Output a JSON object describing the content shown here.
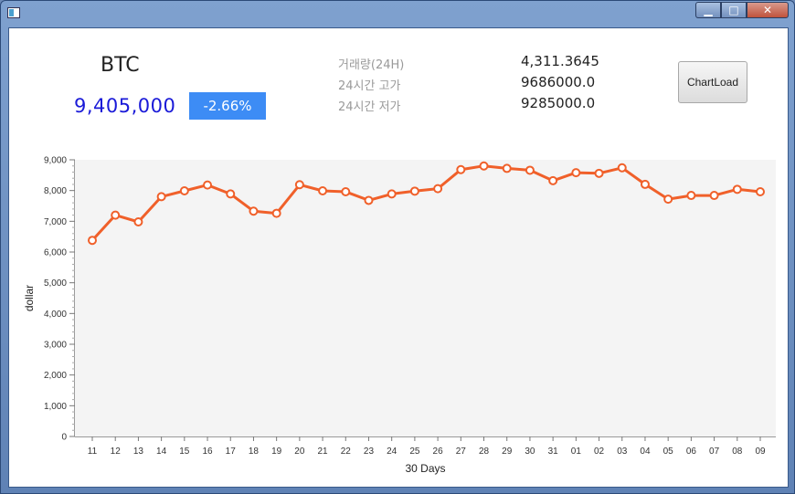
{
  "window": {
    "minimize": "▁",
    "maximize": "□",
    "close": "✕"
  },
  "ticker": {
    "coin": "BTC",
    "price": "9,405,000",
    "change": "-2.66%",
    "stats": [
      {
        "label": "거래량(24H)",
        "value": "4,311.3645"
      },
      {
        "label": "24시간 고가",
        "value": "9686000.0"
      },
      {
        "label": "24시간 저가",
        "value": "9285000.0"
      }
    ]
  },
  "toolbar": {
    "chart_load_label": "ChartLoad"
  },
  "colors": {
    "line": "#f0602a",
    "plot_bg": "#f4f4f4",
    "price": "#1a1ad8",
    "change_bg": "#3d8cf5"
  },
  "chart_data": {
    "type": "line",
    "xlabel": "30 Days",
    "ylabel": "dollar",
    "ylim": [
      0,
      9000
    ],
    "yticks": [
      0,
      1000,
      2000,
      3000,
      4000,
      5000,
      6000,
      7000,
      8000,
      9000
    ],
    "ytick_labels": [
      "0",
      "1,000",
      "2,000",
      "3,000",
      "4,000",
      "5,000",
      "6,000",
      "7,000",
      "8,000",
      "9,000"
    ],
    "categories": [
      "11",
      "12",
      "13",
      "14",
      "15",
      "16",
      "17",
      "18",
      "19",
      "20",
      "21",
      "22",
      "23",
      "24",
      "25",
      "26",
      "27",
      "28",
      "29",
      "30",
      "31",
      "01",
      "02",
      "03",
      "04",
      "05",
      "06",
      "07",
      "08",
      "09"
    ],
    "values": [
      6380,
      7200,
      6980,
      7800,
      7990,
      8180,
      7890,
      7330,
      7260,
      8190,
      7990,
      7960,
      7680,
      7890,
      7980,
      8060,
      8680,
      8800,
      8720,
      8660,
      8320,
      8580,
      8560,
      8740,
      8200,
      7720,
      7840,
      7840,
      8040,
      7960
    ],
    "grid": false
  }
}
